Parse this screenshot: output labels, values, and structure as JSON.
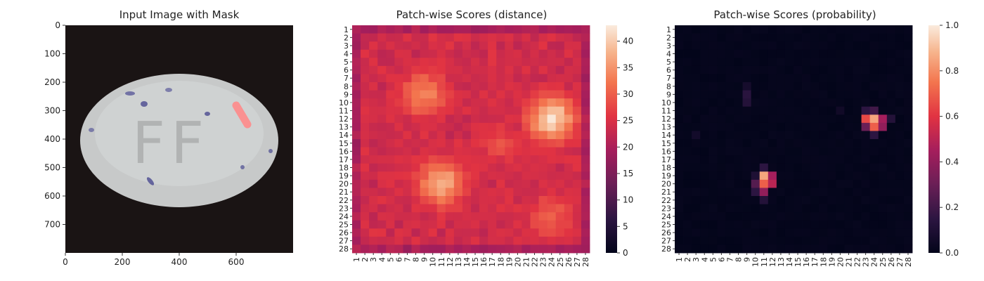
{
  "chart_data": [
    {
      "type": "image",
      "title": "Input Image with Mask",
      "x_ticks": [
        0,
        200,
        400,
        600
      ],
      "y_ticks": [
        0,
        100,
        200,
        300,
        400,
        500,
        600,
        700
      ],
      "xlim": [
        0,
        800
      ],
      "ylim": [
        0,
        800
      ],
      "embossed_text": "FF"
    },
    {
      "type": "heatmap",
      "title": "Patch-wise Scores (distance)",
      "x_labels": [
        "1",
        "2",
        "3",
        "4",
        "5",
        "6",
        "7",
        "8",
        "9",
        "10",
        "11",
        "12",
        "13",
        "14",
        "15",
        "16",
        "17",
        "18",
        "19",
        "20",
        "21",
        "22",
        "23",
        "24",
        "25",
        "26",
        "27",
        "28"
      ],
      "y_labels": [
        "1",
        "2",
        "3",
        "4",
        "5",
        "6",
        "7",
        "8",
        "9",
        "10",
        "11",
        "12",
        "13",
        "14",
        "15",
        "16",
        "17",
        "18",
        "19",
        "20",
        "21",
        "22",
        "23",
        "24",
        "25",
        "26",
        "27",
        "28"
      ],
      "colorbar_ticks": [
        0,
        5,
        10,
        15,
        20,
        25,
        30,
        35,
        40
      ],
      "value_range": [
        0,
        43
      ],
      "background_value": 23,
      "hotspots": [
        {
          "row": 9,
          "col": 9,
          "peak": 34
        },
        {
          "row": 12,
          "col": 24,
          "peak": 42
        },
        {
          "row": 20,
          "col": 11,
          "peak": 38
        },
        {
          "row": 24,
          "col": 24,
          "peak": 30
        },
        {
          "row": 15,
          "col": 18,
          "peak": 28
        }
      ]
    },
    {
      "type": "heatmap",
      "title": "Patch-wise Scores (probability)",
      "x_labels": [
        "1",
        "2",
        "3",
        "4",
        "5",
        "6",
        "7",
        "8",
        "9",
        "10",
        "11",
        "12",
        "13",
        "14",
        "15",
        "16",
        "17",
        "18",
        "19",
        "20",
        "21",
        "22",
        "23",
        "24",
        "25",
        "26",
        "27",
        "28"
      ],
      "y_labels": [
        "1",
        "2",
        "3",
        "4",
        "5",
        "6",
        "7",
        "8",
        "9",
        "10",
        "11",
        "12",
        "13",
        "14",
        "15",
        "16",
        "17",
        "18",
        "19",
        "20",
        "21",
        "22",
        "23",
        "24",
        "25",
        "26",
        "27",
        "28"
      ],
      "colorbar_ticks": [
        "0.0",
        "0.2",
        "0.4",
        "0.6",
        "0.8",
        "1.0"
      ],
      "value_range": [
        0,
        1
      ],
      "background_value": 0,
      "cells": [
        {
          "row": 12,
          "col": 24,
          "value": 0.85
        },
        {
          "row": 12,
          "col": 23,
          "value": 0.65
        },
        {
          "row": 13,
          "col": 24,
          "value": 0.7
        },
        {
          "row": 12,
          "col": 25,
          "value": 0.45
        },
        {
          "row": 13,
          "col": 25,
          "value": 0.4
        },
        {
          "row": 13,
          "col": 23,
          "value": 0.3
        },
        {
          "row": 11,
          "col": 24,
          "value": 0.2
        },
        {
          "row": 11,
          "col": 23,
          "value": 0.15
        },
        {
          "row": 14,
          "col": 24,
          "value": 0.15
        },
        {
          "row": 12,
          "col": 26,
          "value": 0.12
        },
        {
          "row": 19,
          "col": 11,
          "value": 0.85
        },
        {
          "row": 20,
          "col": 11,
          "value": 0.7
        },
        {
          "row": 20,
          "col": 12,
          "value": 0.5
        },
        {
          "row": 19,
          "col": 12,
          "value": 0.45
        },
        {
          "row": 21,
          "col": 11,
          "value": 0.4
        },
        {
          "row": 20,
          "col": 10,
          "value": 0.25
        },
        {
          "row": 21,
          "col": 10,
          "value": 0.15
        },
        {
          "row": 18,
          "col": 11,
          "value": 0.15
        },
        {
          "row": 22,
          "col": 11,
          "value": 0.12
        },
        {
          "row": 19,
          "col": 10,
          "value": 0.1
        },
        {
          "row": 9,
          "col": 9,
          "value": 0.14
        },
        {
          "row": 10,
          "col": 9,
          "value": 0.12
        },
        {
          "row": 8,
          "col": 9,
          "value": 0.07
        },
        {
          "row": 14,
          "col": 3,
          "value": 0.06
        },
        {
          "row": 11,
          "col": 20,
          "value": 0.05
        }
      ]
    }
  ]
}
